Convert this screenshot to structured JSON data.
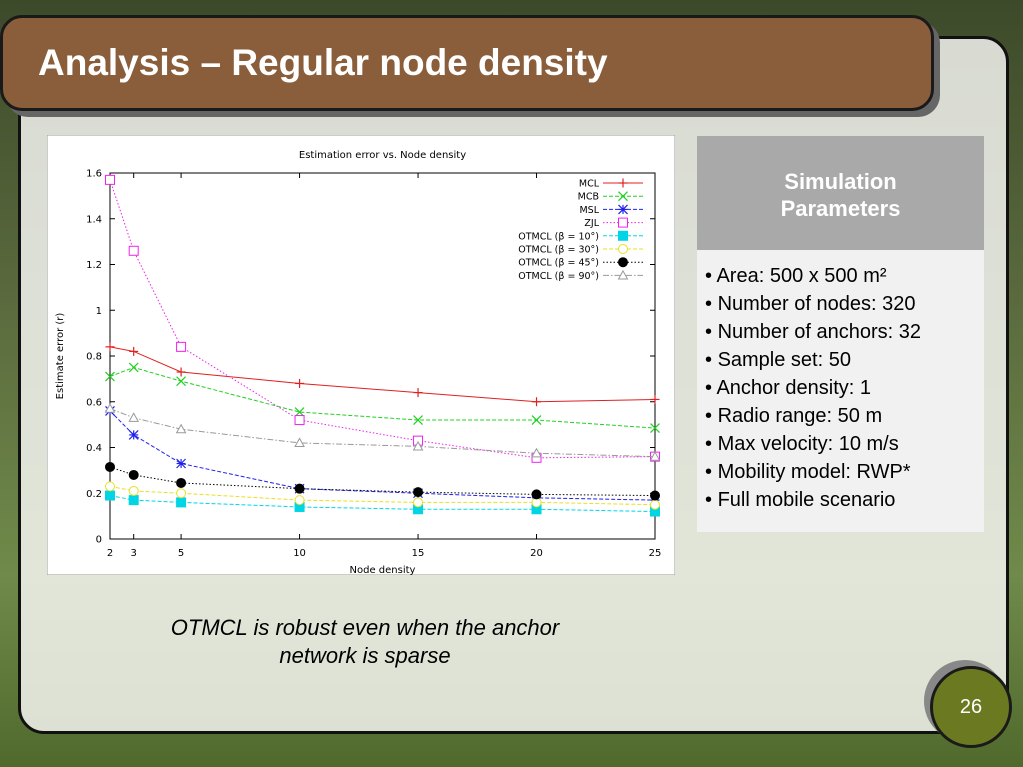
{
  "slide_title": "Analysis – Regular node density",
  "panel_title": "Simulation Parameters",
  "parameters": [
    "Area: 500 x 500 m²",
    "Number of nodes: 320",
    "Number of anchors: 32",
    "Sample set: 50",
    "Anchor density: 1",
    "Radio range: 50 m",
    "Max velocity: 10 m/s",
    "Mobility model: RWP*",
    "Full mobile scenario"
  ],
  "caption": "OTMCL is robust even when the anchor network is sparse",
  "page_number": "26",
  "chart_data": {
    "type": "line",
    "title": "Estimation error vs. Node density",
    "x_label": "Node density",
    "y_label": "Estimate error (r)",
    "x": [
      2,
      3,
      5,
      10,
      15,
      20,
      25
    ],
    "xlim": [
      2,
      25
    ],
    "xticks": [
      2,
      3,
      5,
      10,
      15,
      20,
      25
    ],
    "ylim": [
      0,
      1.6
    ],
    "yticks": [
      0,
      0.2,
      0.4,
      0.6,
      0.8,
      1,
      1.2,
      1.4,
      1.6
    ],
    "legend": "upper right",
    "series": [
      {
        "name": "MCL",
        "color": "#e02020",
        "marker": "plus",
        "dash": "solid",
        "values": [
          0.84,
          0.82,
          0.73,
          0.68,
          0.64,
          0.6,
          0.61
        ]
      },
      {
        "name": "MCB",
        "color": "#22d022",
        "marker": "x",
        "dash": "dashed",
        "values": [
          0.71,
          0.75,
          0.69,
          0.555,
          0.52,
          0.52,
          0.485
        ]
      },
      {
        "name": "MSL",
        "color": "#2020ee",
        "marker": "star",
        "dash": "dashed",
        "values": [
          0.56,
          0.455,
          0.33,
          0.22,
          0.2,
          0.18,
          0.17
        ]
      },
      {
        "name": "ZJL",
        "color": "#ee22ee",
        "marker": "square",
        "dash": "dotted",
        "values": [
          1.57,
          1.26,
          0.84,
          0.52,
          0.43,
          0.355,
          0.36
        ]
      },
      {
        "name": "OTMCL (β = 10°)",
        "color": "#00d5e5",
        "marker": "filled-square",
        "dash": "dashed",
        "values": [
          0.19,
          0.17,
          0.16,
          0.14,
          0.13,
          0.13,
          0.12
        ]
      },
      {
        "name": "OTMCL (β = 30°)",
        "color": "#e8e020",
        "marker": "circle",
        "dash": "dashed",
        "values": [
          0.23,
          0.21,
          0.2,
          0.17,
          0.16,
          0.16,
          0.15
        ]
      },
      {
        "name": "OTMCL (β = 45°)",
        "color": "#000000",
        "marker": "filled-circle",
        "dash": "dotted",
        "values": [
          0.315,
          0.28,
          0.245,
          0.22,
          0.205,
          0.195,
          0.19
        ]
      },
      {
        "name": "OTMCL (β = 90°)",
        "color": "#999999",
        "marker": "triangle",
        "dash": "dashdot",
        "values": [
          0.57,
          0.53,
          0.48,
          0.42,
          0.405,
          0.375,
          0.36
        ]
      }
    ]
  }
}
